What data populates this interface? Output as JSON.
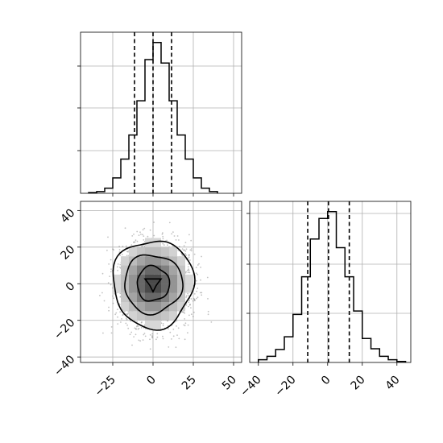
{
  "chart_data": [
    {
      "type": "histogram",
      "panel": "top-left marginal (x)",
      "xlim": [
        -45,
        55
      ],
      "bin_edges": [
        -40,
        -35,
        -30,
        -25,
        -20,
        -15,
        -10,
        -5,
        0,
        5,
        10,
        15,
        20,
        25,
        30,
        35,
        40
      ],
      "counts": [
        2,
        5,
        15,
        45,
        100,
        170,
        270,
        390,
        440,
        380,
        270,
        170,
        100,
        45,
        15,
        5
      ],
      "ylim": [
        0,
        470
      ],
      "quantiles": [
        -11.5,
        0,
        11.5
      ],
      "xticks": [
        -25,
        0,
        25,
        50
      ],
      "xtick_labels": [],
      "grid": true
    },
    {
      "type": "scatter",
      "panel": "bottom-left 2D density (x vs y)",
      "xlim": [
        -45,
        55
      ],
      "ylim": [
        -43,
        45
      ],
      "xticks": [
        -25,
        0,
        25,
        50
      ],
      "xtick_labels": [
        "−25",
        "0",
        "25",
        "50"
      ],
      "yticks": [
        -40,
        -20,
        0,
        20,
        40
      ],
      "ytick_labels": [
        "−40",
        "−20",
        "0",
        "20",
        "40"
      ],
      "distribution": {
        "mean_x": 0,
        "mean_y": 0,
        "std_x": 11,
        "std_y": 11,
        "n_points": 2600
      },
      "contours": [
        {
          "level": "outer",
          "rx": 25,
          "ry": 24
        },
        {
          "level": "middle",
          "rx": 18,
          "ry": 16
        },
        {
          "level": "inner",
          "rx": 10,
          "ry": 9.5
        }
      ],
      "grid": true
    },
    {
      "type": "histogram",
      "panel": "bottom-right marginal (y)",
      "xlim": [
        -45,
        48
      ],
      "bin_edges": [
        -40,
        -35,
        -30,
        -25,
        -20,
        -15,
        -10,
        -5,
        0,
        5,
        10,
        15,
        20,
        25,
        30,
        35,
        40,
        45
      ],
      "counts": [
        8,
        18,
        38,
        75,
        140,
        250,
        360,
        420,
        440,
        335,
        250,
        150,
        70,
        40,
        18,
        8,
        3
      ],
      "ylim": [
        0,
        470
      ],
      "quantiles": [
        -11.5,
        0.5,
        12.5
      ],
      "xticks": [
        -40,
        -20,
        0,
        20,
        40
      ],
      "xtick_labels": [
        "−40",
        "−20",
        "0",
        "20",
        "40"
      ],
      "grid": true
    }
  ]
}
